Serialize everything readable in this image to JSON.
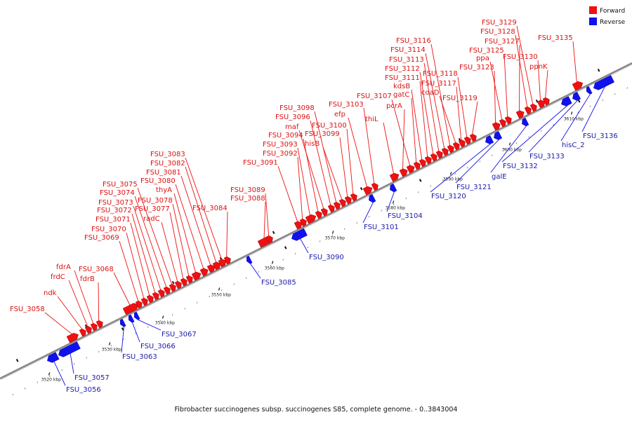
{
  "caption": "Fibrobacter succinogenes subsp. succinogenes S85, complete genome. - 0..3843004",
  "legend": [
    {
      "label": "Forward",
      "color": "#ee1111"
    },
    {
      "label": "Reverse",
      "color": "#1111ee"
    }
  ],
  "axis": {
    "ticks": [
      "3520 kbp",
      "3530 kbp",
      "3540 kbp",
      "3550 kbp",
      "3560 kbp",
      "3570 kbp",
      "3580 kbp",
      "3590 kbp",
      "3600 kbp",
      "3610 kbp"
    ]
  },
  "colors": {
    "forward": "#ee1111",
    "reverse": "#1111ee",
    "forward_label": "#dd1111",
    "reverse_label": "#1a1aaa",
    "backbone": "#888888"
  },
  "genes_forward": [
    {
      "name": "FSU_3058"
    },
    {
      "name": "ndk"
    },
    {
      "name": "frdC"
    },
    {
      "name": "fdrA"
    },
    {
      "name": "fdrB"
    },
    {
      "name": "FSU_3068"
    },
    {
      "name": "FSU_3069"
    },
    {
      "name": "FSU_3070"
    },
    {
      "name": "FSU_3071"
    },
    {
      "name": "FSU_3072"
    },
    {
      "name": "FSU_3073"
    },
    {
      "name": "FSU_3074"
    },
    {
      "name": "FSU_3075"
    },
    {
      "name": "radC"
    },
    {
      "name": "FSU_3077"
    },
    {
      "name": "FSU_3078"
    },
    {
      "name": "thyA"
    },
    {
      "name": "FSU_3080"
    },
    {
      "name": "FSU_3081"
    },
    {
      "name": "FSU_3082"
    },
    {
      "name": "FSU_3083"
    },
    {
      "name": "FSU_3084"
    },
    {
      "name": "FSU_3088"
    },
    {
      "name": "FSU_3089"
    },
    {
      "name": "FSU_3091"
    },
    {
      "name": "FSU_3092"
    },
    {
      "name": "FSU_3093"
    },
    {
      "name": "FSU_3094"
    },
    {
      "name": "maf"
    },
    {
      "name": "FSU_3096"
    },
    {
      "name": "FSU_3098"
    },
    {
      "name": "hisB"
    },
    {
      "name": "FSU_3099"
    },
    {
      "name": "FSU_3100"
    },
    {
      "name": "efp"
    },
    {
      "name": "FSU_3103"
    },
    {
      "name": "thiL"
    },
    {
      "name": "pcrA"
    },
    {
      "name": "FSU_3107"
    },
    {
      "name": "gatC"
    },
    {
      "name": "kdsB"
    },
    {
      "name": "FSU_3111"
    },
    {
      "name": "FSU_3112"
    },
    {
      "name": "FSU_3113"
    },
    {
      "name": "FSU_3114"
    },
    {
      "name": "FSU_3116"
    },
    {
      "name": "coaD"
    },
    {
      "name": "FSU_3117"
    },
    {
      "name": "FSU_3118"
    },
    {
      "name": "FSU_3119"
    },
    {
      "name": "FSU_3123"
    },
    {
      "name": "ppa"
    },
    {
      "name": "FSU_3125"
    },
    {
      "name": "FSU_3127"
    },
    {
      "name": "FSU_3128"
    },
    {
      "name": "FSU_3129"
    },
    {
      "name": "FSU_3130"
    },
    {
      "name": "ppnK"
    },
    {
      "name": "FSU_3135"
    }
  ],
  "genes_reverse": [
    {
      "name": "FSU_3056"
    },
    {
      "name": "FSU_3057"
    },
    {
      "name": "FSU_3063"
    },
    {
      "name": "FSU_3066"
    },
    {
      "name": "FSU_3067"
    },
    {
      "name": "FSU_3085"
    },
    {
      "name": "FSU_3090"
    },
    {
      "name": "FSU_3101"
    },
    {
      "name": "FSU_3104"
    },
    {
      "name": "FSU_3120"
    },
    {
      "name": "FSU_3121"
    },
    {
      "name": "galE"
    },
    {
      "name": "FSU_3132"
    },
    {
      "name": "FSU_3133"
    },
    {
      "name": "hisC_2"
    },
    {
      "name": "FSU_3136"
    }
  ]
}
